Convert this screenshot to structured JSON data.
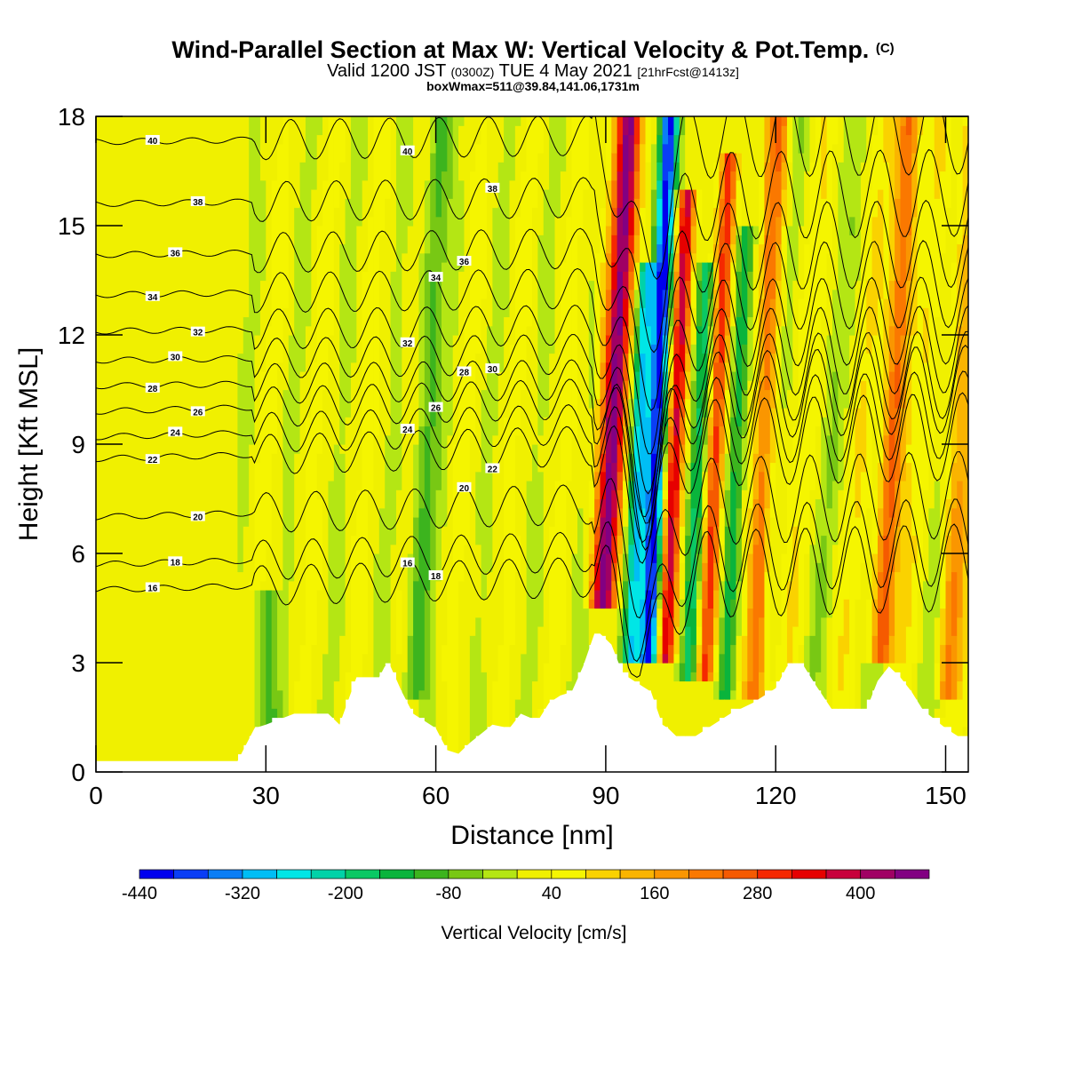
{
  "title": {
    "main": "Wind-Parallel Section at Max W: Vertical Velocity & Pot.Temp.",
    "main_unit": "(C)",
    "valid_prefix": "Valid 1200 JST",
    "valid_utc": "(0300Z)",
    "valid_suffix": "TUE 4 May 2021",
    "fcst": "[21hrFcst@1413z]",
    "boxmax": "boxWmax=511@39.84,141.06,1731m"
  },
  "chart_data": {
    "type": "heatmap",
    "description_fields": "filled contours of vertical velocity with overlaid potential temperature isolines",
    "xlabel": "Distance [nm]",
    "ylabel": "Height [Kft MSL]",
    "xlim": [
      0,
      154
    ],
    "ylim": [
      0,
      18
    ],
    "xticks": [
      0,
      30,
      60,
      90,
      120,
      150
    ],
    "yticks": [
      0,
      3,
      6,
      9,
      12,
      15,
      18
    ],
    "grid": false,
    "terrain_kft": [
      [
        0,
        0.3
      ],
      [
        25,
        0.3
      ],
      [
        28,
        1.2
      ],
      [
        30,
        1.3
      ],
      [
        35,
        1.6
      ],
      [
        41,
        1.6
      ],
      [
        43,
        1.3
      ],
      [
        46,
        2.6
      ],
      [
        50,
        2.6
      ],
      [
        51,
        2.9
      ],
      [
        52,
        2.9
      ],
      [
        54,
        2.2
      ],
      [
        56,
        1.6
      ],
      [
        60,
        1.2
      ],
      [
        62,
        0.6
      ],
      [
        64,
        0.5
      ],
      [
        66,
        0.8
      ],
      [
        70,
        1.3
      ],
      [
        73,
        1.2
      ],
      [
        75,
        1.6
      ],
      [
        78,
        1.4
      ],
      [
        80,
        1.9
      ],
      [
        82,
        2.1
      ],
      [
        84,
        2.2
      ],
      [
        86,
        2.9
      ],
      [
        88,
        3.8
      ],
      [
        89,
        3.8
      ],
      [
        91,
        3.5
      ],
      [
        93,
        2.7
      ],
      [
        96,
        2.4
      ],
      [
        98,
        2.2
      ],
      [
        100,
        1.3
      ],
      [
        101,
        1.2
      ],
      [
        103,
        0.9
      ],
      [
        105,
        0.9
      ],
      [
        108,
        1.2
      ],
      [
        112,
        1.6
      ],
      [
        116,
        1.9
      ],
      [
        120,
        2.3
      ],
      [
        122,
        2.9
      ],
      [
        125,
        2.9
      ],
      [
        127,
        2.4
      ],
      [
        130,
        1.7
      ],
      [
        136,
        1.7
      ],
      [
        138,
        2.5
      ],
      [
        140,
        2.9
      ],
      [
        142,
        2.6
      ],
      [
        144,
        2.2
      ],
      [
        146,
        1.7
      ],
      [
        150,
        1.2
      ],
      [
        153,
        0.9
      ],
      [
        154,
        0.9
      ]
    ],
    "theta_contours_c": [
      16,
      18,
      20,
      22,
      24,
      26,
      28,
      30,
      32,
      34,
      36,
      38,
      40
    ],
    "theta_left_heights_kft": {
      "16": 5.0,
      "18": 5.7,
      "20": 7.0,
      "22": 8.6,
      "24": 9.2,
      "26": 9.9,
      "28": 10.6,
      "30": 11.3,
      "32": 12.1,
      "34": 13.1,
      "36": 14.2,
      "38": 15.6,
      "40": 17.3
    },
    "velocity_features": [
      {
        "x": 89.5,
        "y_bottom": 4.5,
        "y_top": 18,
        "w": 440,
        "width_nm": 2.2,
        "tilt": 0.35
      },
      {
        "x": 94.5,
        "y_bottom": 3.0,
        "y_top": 14,
        "w": -300,
        "width_nm": 1.6,
        "tilt": 0.25
      },
      {
        "x": 97.5,
        "y_bottom": 3.0,
        "y_top": 18,
        "w": -440,
        "width_nm": 1.6,
        "tilt": 0.25
      },
      {
        "x": 100.5,
        "y_bottom": 3.0,
        "y_top": 16,
        "w": 360,
        "width_nm": 1.5,
        "tilt": 0.3
      },
      {
        "x": 104.5,
        "y_bottom": 2.5,
        "y_top": 14,
        "w": -200,
        "width_nm": 1.5,
        "tilt": 0.3
      },
      {
        "x": 107.5,
        "y_bottom": 2.5,
        "y_top": 17,
        "w": 280,
        "width_nm": 1.5,
        "tilt": 0.3
      },
      {
        "x": 111.0,
        "y_bottom": 2.0,
        "y_top": 15,
        "w": -160,
        "width_nm": 1.5,
        "tilt": 0.3
      },
      {
        "x": 116.0,
        "y_bottom": 2.0,
        "y_top": 18,
        "w": 200,
        "width_nm": 2.0,
        "tilt": 0.3
      },
      {
        "x": 138.5,
        "y_bottom": 3.0,
        "y_top": 18,
        "w": 280,
        "width_nm": 2.0,
        "tilt": 0.35
      },
      {
        "x": 150.0,
        "y_bottom": 2.0,
        "y_top": 18,
        "w": 160,
        "width_nm": 2.0,
        "tilt": 0.3
      },
      {
        "x": 56.0,
        "y_bottom": 2.0,
        "y_top": 18,
        "w": -120,
        "width_nm": 2.0,
        "tilt": 0.3
      },
      {
        "x": 30.0,
        "y_bottom": 1.0,
        "y_top": 5,
        "w": -120,
        "width_nm": 2.0,
        "tilt": 0.0
      }
    ]
  },
  "colorbar": {
    "title": "Vertical Velocity [cm/s]",
    "levels": [
      -440,
      -400,
      -360,
      -320,
      -280,
      -240,
      -200,
      -160,
      -120,
      -80,
      -40,
      0,
      40,
      80,
      120,
      160,
      200,
      240,
      280,
      320,
      360,
      400,
      440,
      480
    ],
    "tick_labels": [
      "-440",
      "-320",
      "-200",
      "-80",
      "40",
      "160",
      "280",
      "400"
    ],
    "colors": [
      "#0000ee",
      "#0a3ef5",
      "#0a7ef5",
      "#00bef5",
      "#00e6e6",
      "#00d2a8",
      "#0ac864",
      "#0ab43c",
      "#3cb41e",
      "#78c814",
      "#b4e614",
      "#f0f000",
      "#f5f500",
      "#fad200",
      "#fab400",
      "#fa9600",
      "#fa7800",
      "#f55a00",
      "#f52800",
      "#e60000",
      "#c8003c",
      "#a00064",
      "#820082",
      "#640096"
    ]
  }
}
